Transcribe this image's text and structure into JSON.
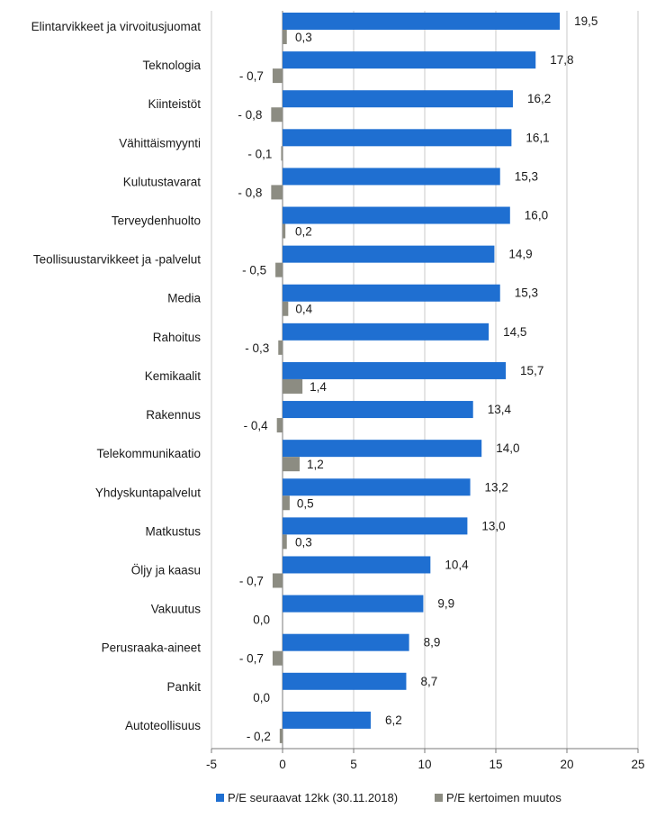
{
  "chart_data": {
    "type": "bar",
    "orientation": "horizontal",
    "categories": [
      "Elintarvikkeet ja virvoitusjuomat",
      "Teknologia",
      "Kiinteistöt",
      "Vähittäismyynti",
      "Kulutustavarat",
      "Terveydenhuolto",
      "Teollisuustarvikkeet ja -palvelut",
      "Media",
      "Rahoitus",
      "Kemikaalit",
      "Rakennus",
      "Telekommunikaatio",
      "Yhdyskuntapalvelut",
      "Matkustus",
      "Öljy ja kaasu",
      "Vakuutus",
      "Perusraaka-aineet",
      "Pankit",
      "Autoteollisuus"
    ],
    "series": [
      {
        "name": "P/E seuraavat 12kk (30.11.2018)",
        "color": "#1f6fd1",
        "values": [
          19.5,
          17.8,
          16.2,
          16.1,
          15.3,
          16.0,
          14.9,
          15.3,
          14.5,
          15.7,
          13.4,
          14.0,
          13.2,
          13.0,
          10.4,
          9.9,
          8.9,
          8.7,
          6.2
        ],
        "labels": [
          "19,5",
          "17,8",
          "16,2",
          "16,1",
          "15,3",
          "16,0",
          "14,9",
          "15,3",
          "14,5",
          "15,7",
          "13,4",
          "14,0",
          "13,2",
          "13,0",
          "10,4",
          "9,9",
          "8,9",
          "8,7",
          "6,2"
        ]
      },
      {
        "name": "P/E kertoimen muutos",
        "color": "#8c8c82",
        "values": [
          0.3,
          -0.7,
          -0.8,
          -0.1,
          -0.8,
          0.2,
          -0.5,
          0.4,
          -0.3,
          1.4,
          -0.4,
          1.2,
          0.5,
          0.3,
          -0.7,
          0.0,
          -0.7,
          0.0,
          -0.2
        ],
        "labels": [
          "0,3",
          "- 0,7",
          "- 0,8",
          "- 0,1",
          "- 0,8",
          "0,2",
          "- 0,5",
          "0,4",
          "- 0,3",
          "1,4",
          "- 0,4",
          "1,2",
          "0,5",
          "0,3",
          "- 0,7",
          "0,0",
          "- 0,7",
          "0,0",
          "- 0,2"
        ]
      }
    ],
    "xlim": [
      -5,
      25
    ],
    "xticks": [
      -5,
      0,
      5,
      10,
      15,
      20,
      25
    ],
    "grid": true,
    "legend": "bottom",
    "title": "",
    "xlabel": "",
    "ylabel": ""
  }
}
